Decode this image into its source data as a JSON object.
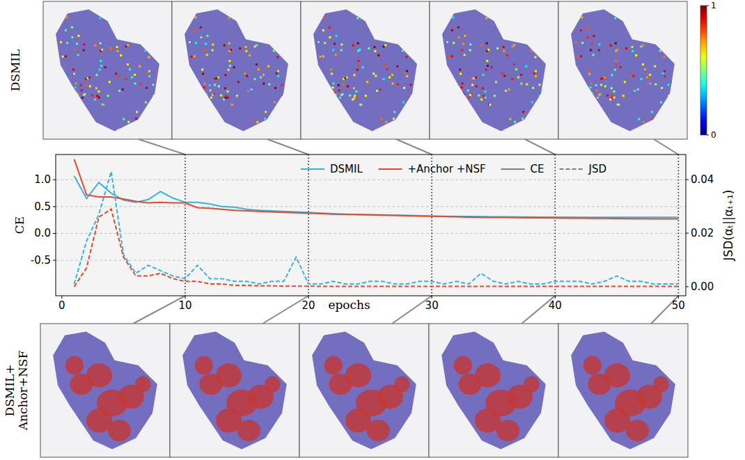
{
  "chart_data": {
    "type": "line",
    "x_label": "epochs",
    "y_label": "CE",
    "y2_label": "JSD(αₜ||αₜ₊₁)",
    "x": [
      1,
      2,
      3,
      4,
      5,
      6,
      7,
      8,
      9,
      10,
      11,
      12,
      13,
      14,
      15,
      16,
      17,
      18,
      19,
      20,
      21,
      22,
      23,
      24,
      25,
      26,
      27,
      28,
      29,
      30,
      31,
      32,
      33,
      34,
      35,
      36,
      37,
      38,
      39,
      40,
      41,
      42,
      43,
      44,
      45,
      46,
      47,
      48,
      49,
      50
    ],
    "xlim": [
      -0.5,
      50.6
    ],
    "xticks": [
      0,
      10,
      20,
      30,
      40,
      50
    ],
    "ylim": [
      -1.16,
      1.47
    ],
    "yticks": [
      -0.5,
      {
        "value": 0,
        "label": "0.0"
      },
      0.5,
      {
        "value": 1,
        "label": "1.0"
      }
    ],
    "y2lim": [
      -0.0034,
      0.0494
    ],
    "y2ticks": [
      {
        "value": 0,
        "label": "0.00"
      },
      0.02,
      0.04
    ],
    "grid": true,
    "legend": "upper right",
    "snapshot_epochs": [
      10,
      20,
      30,
      40,
      50
    ],
    "series": [
      {
        "name": "DSMIL",
        "color": "#2fb4e6",
        "line_style": "solid",
        "values": [
          1.07,
          0.65,
          0.95,
          0.75,
          0.62,
          0.58,
          0.63,
          0.78,
          0.66,
          0.58,
          0.58,
          0.55,
          0.5,
          0.49,
          0.45,
          0.43,
          0.42,
          0.41,
          0.4,
          0.39,
          0.38,
          0.37,
          0.36,
          0.355,
          0.35,
          0.345,
          0.34,
          0.335,
          0.33,
          0.325,
          0.32,
          0.318,
          0.316,
          0.314,
          0.312,
          0.31,
          0.308,
          0.306,
          0.305,
          0.304,
          0.303,
          0.302,
          0.301,
          0.3,
          0.3,
          0.3,
          0.3,
          0.3,
          0.3,
          0.3
        ]
      },
      {
        "name": "+Anchor +NSF",
        "color": "#e8472a",
        "line_style": "solid",
        "values": [
          1.38,
          0.72,
          0.68,
          0.68,
          0.64,
          0.6,
          0.57,
          0.58,
          0.57,
          0.57,
          0.48,
          0.47,
          0.45,
          0.43,
          0.42,
          0.41,
          0.4,
          0.39,
          0.385,
          0.38,
          0.37,
          0.36,
          0.355,
          0.35,
          0.345,
          0.34,
          0.335,
          0.33,
          0.325,
          0.32,
          0.315,
          0.31,
          0.305,
          0.3,
          0.298,
          0.296,
          0.294,
          0.292,
          0.29,
          0.288,
          0.286,
          0.284,
          0.282,
          0.28,
          0.278,
          0.276,
          0.274,
          0.272,
          0.27,
          0.27
        ]
      },
      {
        "name": "DSMIL",
        "color": "#2fb4e6",
        "line_style": "dashed",
        "axis": "y2",
        "values": [
          0.001,
          0.017,
          0.027,
          0.043,
          0.012,
          0.005,
          0.008,
          0.006,
          0.004,
          0.003,
          0.008,
          0.003,
          0.003,
          0.002,
          0.002,
          0.001,
          0.002,
          0.002,
          0.011,
          0.001,
          0.001,
          0.002,
          0.001,
          0.001,
          0.002,
          0.002,
          0.001,
          0.001,
          0.002,
          0.002,
          0.001,
          0.002,
          0.001,
          0.005,
          0.002,
          0.001,
          0.002,
          0.001,
          0.001,
          0.002,
          0.002,
          0.002,
          0.001,
          0.002,
          0.004,
          0.002,
          0.002,
          0.001,
          0.001,
          0.001
        ]
      },
      {
        "name": "+Anchor +NSF",
        "color": "#e8472a",
        "line_style": "dashed",
        "axis": "y2",
        "values": [
          0.0,
          0.007,
          0.026,
          0.029,
          0.011,
          0.004,
          0.004,
          0.005,
          0.003,
          0.002,
          0.002,
          0.001,
          0.001,
          0.0005,
          0.0005,
          0.0003,
          0.0003,
          0.0002,
          0.0002,
          0.0002,
          0.0001,
          0.0001,
          0.0001,
          0.0001,
          0.0001,
          0.0001,
          0.0001,
          0.0001,
          0.0001,
          0.0001,
          0.0001,
          0.0001,
          0.0001,
          0.0001,
          0.0001,
          0.0001,
          0.0001,
          0.0001,
          0.0001,
          0.0001,
          0.0001,
          0.0001,
          0.0001,
          0.0001,
          0.0001,
          0.0001,
          0.0001,
          0.0001,
          0.0001,
          0.0001
        ]
      }
    ],
    "style_legend": [
      {
        "name": "CE",
        "line_style": "solid"
      },
      {
        "name": "JSD",
        "line_style": "dashed"
      }
    ],
    "image_rows": [
      "DSMIL",
      "DSMIL+ Anchor+NSF"
    ],
    "colorbar": {
      "range": [
        0,
        1
      ],
      "ticks": [
        0,
        1
      ]
    }
  }
}
